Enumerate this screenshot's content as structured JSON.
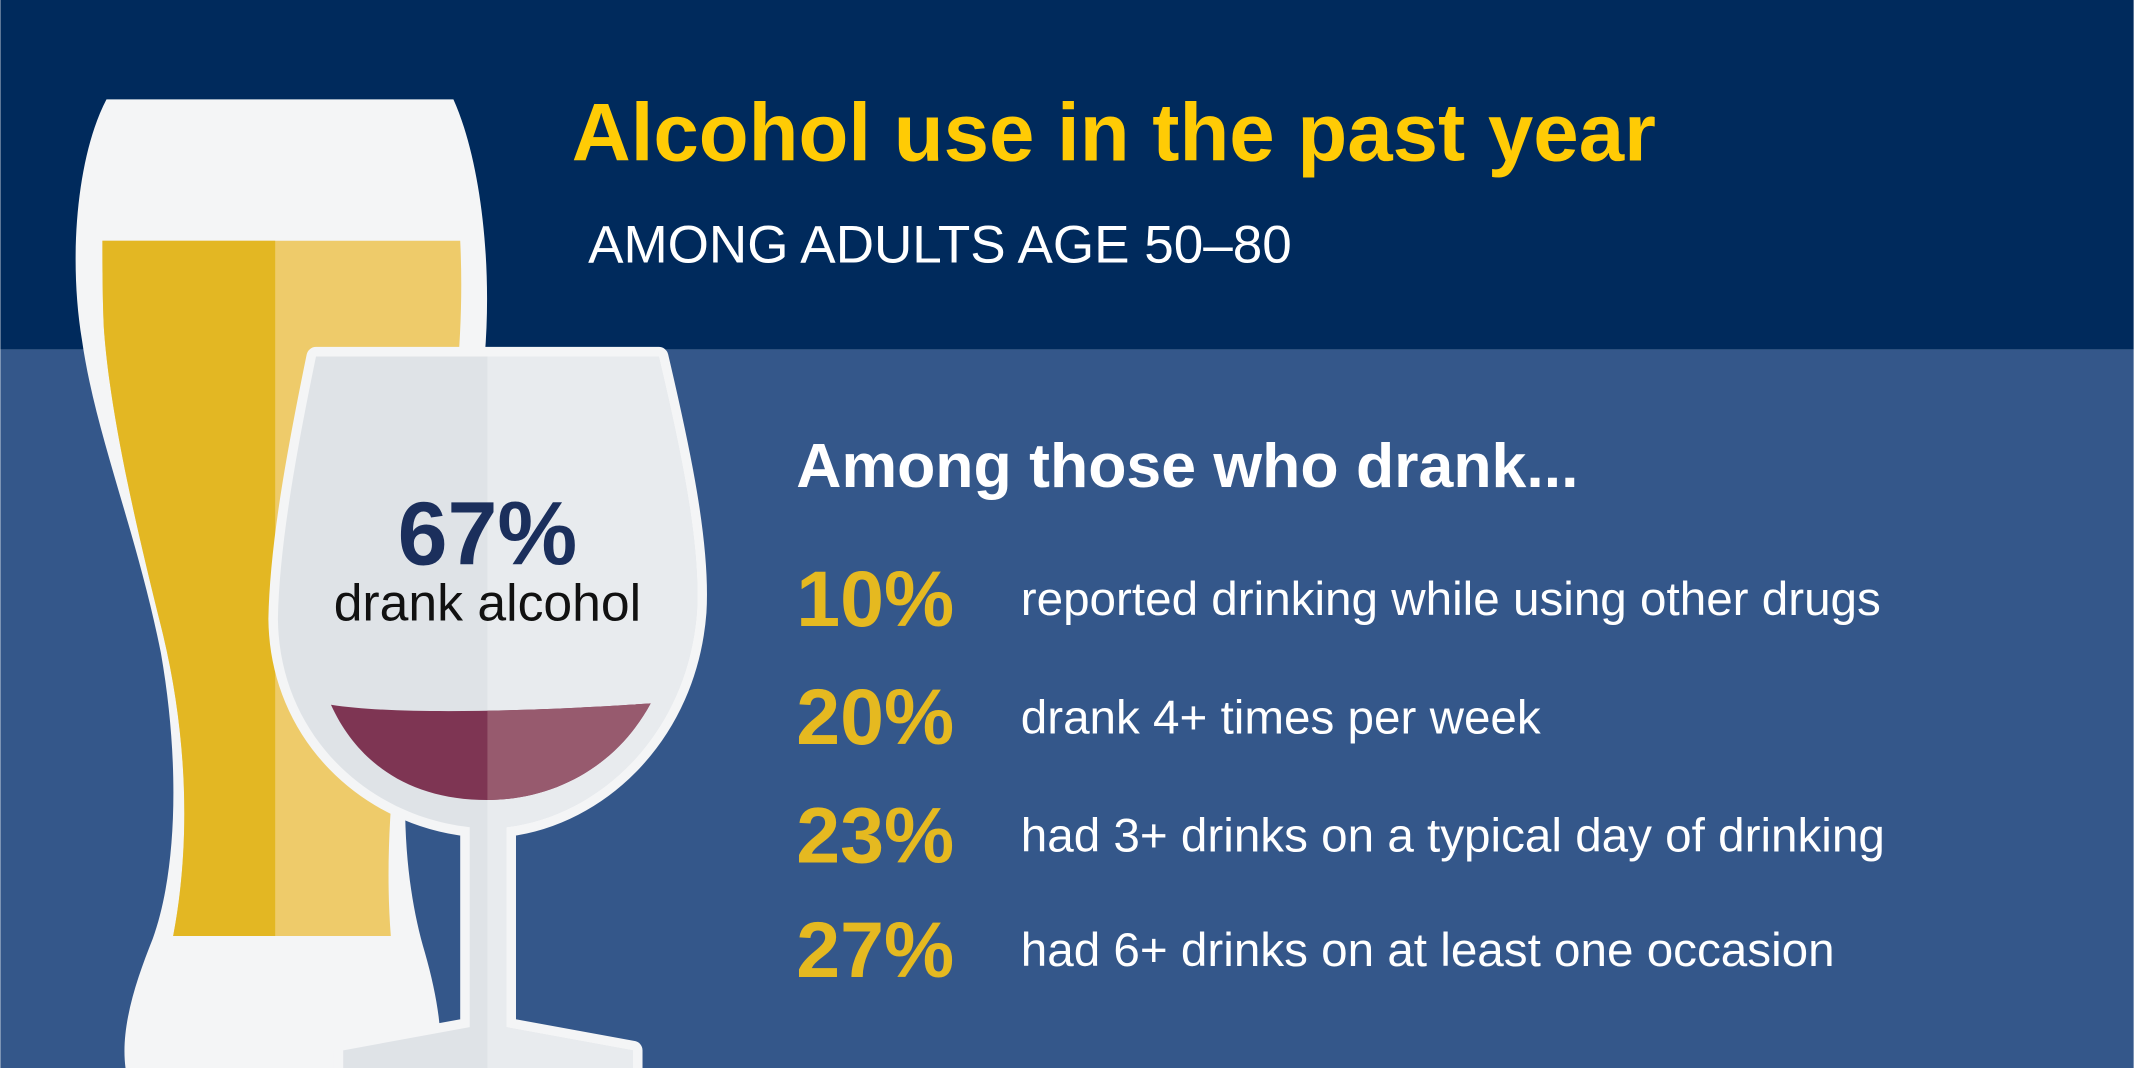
{
  "header": {
    "title": "Alcohol use in the past year",
    "subtitle": "AMONG ADULTS AGE 50–80"
  },
  "highlight": {
    "value": "67%",
    "label": "drank alcohol"
  },
  "section": {
    "heading": "Among those who drank...",
    "stats": [
      {
        "value": "10%",
        "text": "reported drinking while using other drugs"
      },
      {
        "value": "20%",
        "text": "drank 4+ times per week"
      },
      {
        "value": "23%",
        "text": "had 3+ drinks on a typical day of drinking"
      },
      {
        "value": "27%",
        "text": "had 6+ drinks on at least one occasion"
      }
    ]
  }
}
